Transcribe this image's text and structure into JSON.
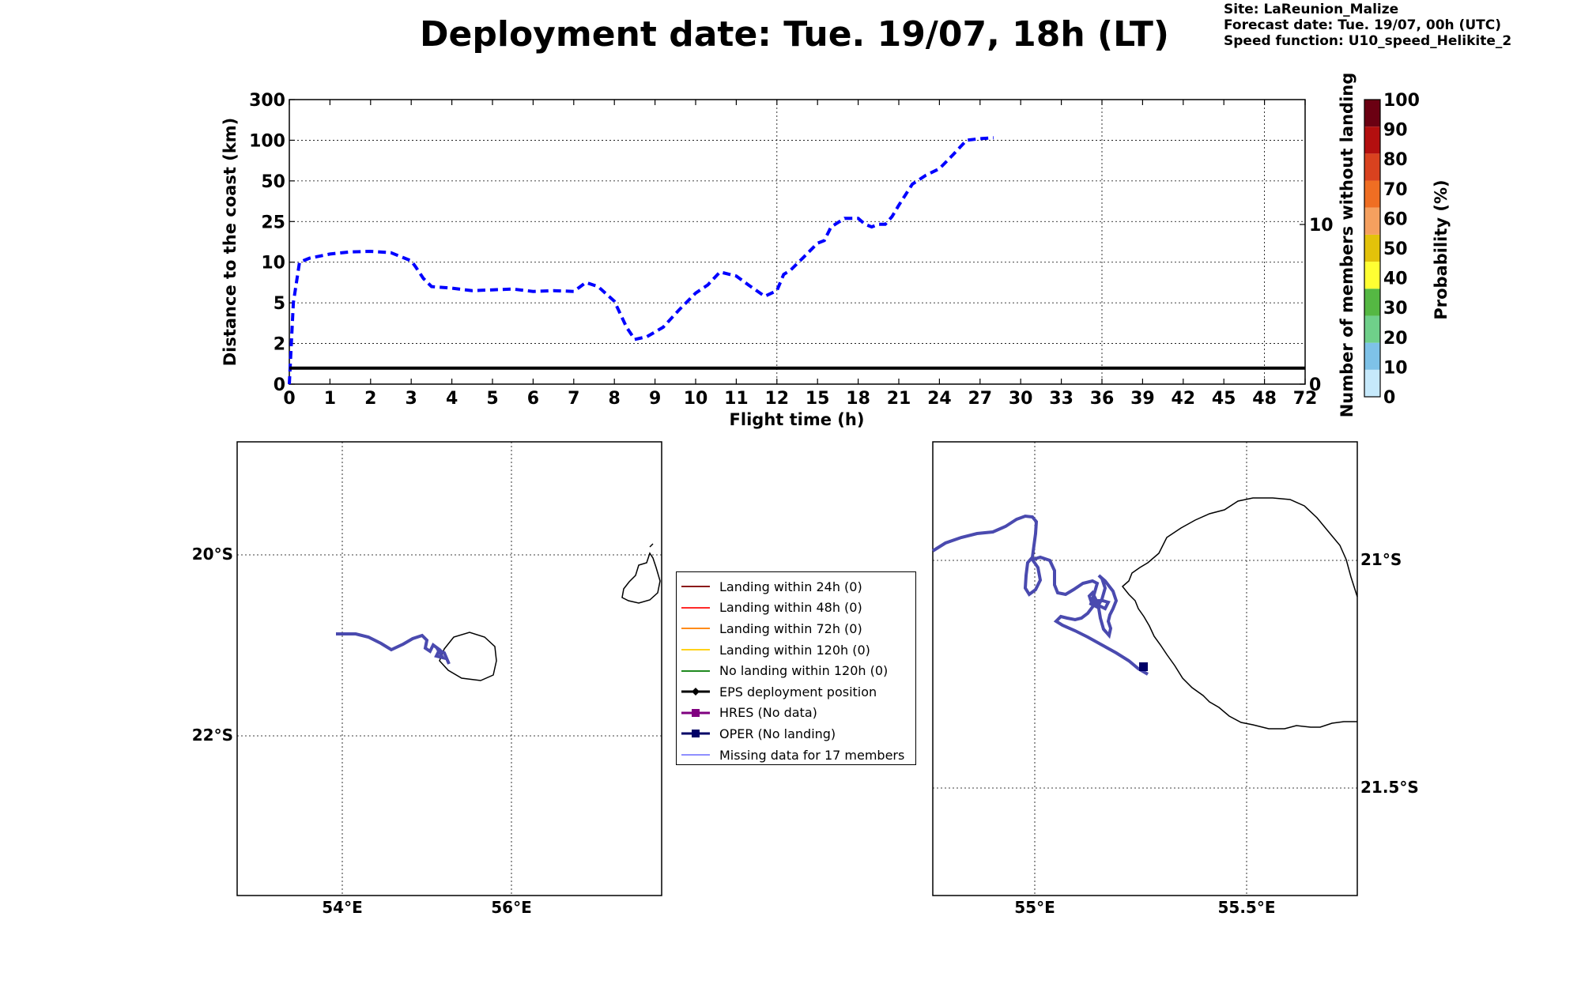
{
  "header": {
    "title": "Deployment date: Tue. 19/07, 18h (LT)",
    "site": "Site: LaReunion_Malize",
    "forecast": "Forecast date: Tue. 19/07, 00h (UTC)",
    "speed": "Speed function: U10_speed_Helikite_2"
  },
  "chart_data": [
    {
      "type": "line",
      "xlabel": "Flight time (h)",
      "ylabel": "Distance to the coast (km)",
      "y2label": "Number of members without landing",
      "x_ticks": [
        "0",
        "1",
        "2",
        "3",
        "4",
        "5",
        "6",
        "7",
        "8",
        "9",
        "10",
        "11",
        "12",
        "15",
        "18",
        "21",
        "24",
        "27",
        "30",
        "33",
        "36",
        "39",
        "42",
        "45",
        "48",
        "72"
      ],
      "y_ticks": [
        "0",
        "2",
        "5",
        "10",
        "25",
        "50",
        "100",
        "300"
      ],
      "y2_ticks": [
        "0",
        "10"
      ],
      "grid": true,
      "series": [
        {
          "color": "#0000ff",
          "style": "dashed",
          "x": [
            0,
            0.1,
            0.25,
            0.5,
            1,
            1.5,
            2,
            2.5,
            3,
            3.1,
            3.3,
            3.5,
            4,
            4.5,
            5,
            5.5,
            6,
            6.5,
            7,
            7.3,
            7.6,
            8,
            8.3,
            8.5,
            8.8,
            9.2,
            9.6,
            10,
            10.3,
            10.6,
            11,
            11.3,
            11.7,
            12,
            12.5,
            13,
            14,
            15,
            15.5,
            16,
            17,
            18,
            18.5,
            19,
            19.5,
            20,
            20.5,
            21,
            22,
            23,
            24,
            25,
            26,
            27,
            28
          ],
          "y": [
            0,
            5,
            10,
            11.5,
            13,
            13.8,
            14,
            13.5,
            10.5,
            9.5,
            8,
            7,
            6.8,
            6.5,
            6.6,
            6.7,
            6.4,
            6.5,
            6.4,
            7.5,
            7,
            5.2,
            3.2,
            2.3,
            2.5,
            3.2,
            4.5,
            6.2,
            7.2,
            8.8,
            8.3,
            7.2,
            5.8,
            6.5,
            8.5,
            9,
            12,
            17,
            18,
            23,
            27,
            27,
            24,
            23,
            24,
            24,
            28,
            35,
            48,
            57,
            65,
            82,
            100,
            108,
            112
          ]
        },
        {
          "color": "#000000",
          "style": "solid",
          "x": [
            0,
            72
          ],
          "y2": [
            1,
            1
          ]
        }
      ]
    },
    {
      "type": "heatmap",
      "ylabel": "Probability (%)",
      "ticks": [
        "0",
        "10",
        "20",
        "30",
        "40",
        "50",
        "60",
        "70",
        "80",
        "90",
        "100"
      ],
      "colors": [
        "#c6e9fb",
        "#7ec2e8",
        "#6fd08a",
        "#55b843",
        "#ffff33",
        "#e3c20a",
        "#f5a05f",
        "#ef6e23",
        "#d9421f",
        "#b30f0f",
        "#6b0012"
      ]
    },
    {
      "type": "scatter",
      "name": "map-overview",
      "x_ticks": [
        "54°E",
        "56°E"
      ],
      "y_ticks": [
        "20°S",
        "22°S"
      ],
      "track_color": "#4a4aaf"
    },
    {
      "type": "scatter",
      "name": "map-zoom",
      "x_ticks": [
        "55°E",
        "55.5°E"
      ],
      "y_ticks": [
        "21°S",
        "21.5°S"
      ],
      "track_color": "#4a4aaf",
      "marker_color": "#000066"
    }
  ],
  "legend": [
    {
      "label": "Landing within 24h (0)",
      "color": "#8b1a1a",
      "marker": "line"
    },
    {
      "label": "Landing within 48h (0)",
      "color": "#ff2a2a",
      "marker": "line"
    },
    {
      "label": "Landing within 72h (0)",
      "color": "#ff8c1a",
      "marker": "line"
    },
    {
      "label": "Landing within 120h (0)",
      "color": "#ffd21a",
      "marker": "line"
    },
    {
      "label": "No landing within 120h (0)",
      "color": "#1f8a1f",
      "marker": "line"
    },
    {
      "label": "EPS deployment position",
      "color": "#000000",
      "marker": "diamond"
    },
    {
      "label": "HRES (No data)",
      "color": "#800080",
      "marker": "square"
    },
    {
      "label": "OPER (No landing)",
      "color": "#000066",
      "marker": "square"
    },
    {
      "label": "Missing data for 17 members",
      "color": "#6a6aff",
      "marker": "thin"
    }
  ]
}
